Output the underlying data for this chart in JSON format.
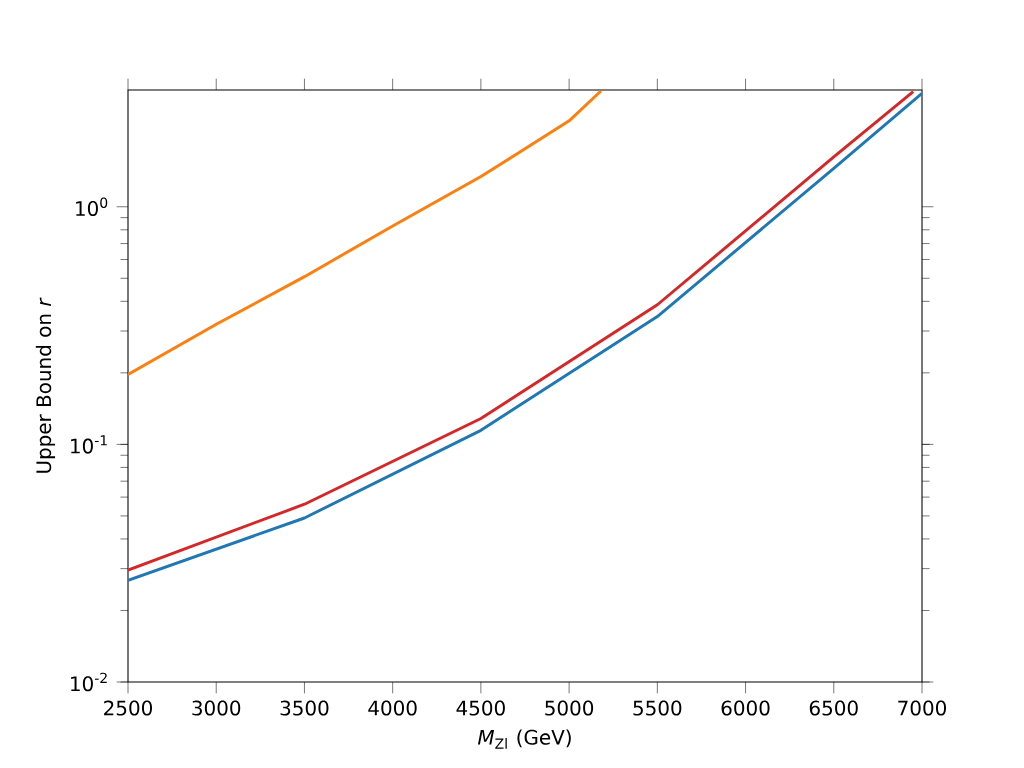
{
  "chart_data": {
    "type": "line",
    "xlabel": "*M*$_{Zl}$ (GeV)",
    "ylabel": "Upper Bound on *r*",
    "log": "y",
    "x": [
      2500,
      3500,
      4500,
      5500,
      6500,
      7000
    ],
    "xlim": [
      2500,
      7000
    ],
    "ylim": [
      0.01,
      3.1
    ],
    "xticks": [
      2500,
      3000,
      3500,
      4000,
      4500,
      5000,
      5500,
      6000,
      6500,
      7000
    ],
    "yticks": [
      {
        "value": 0.01,
        "label": "10$^{-2}$"
      },
      {
        "value": 0.1,
        "label": "10$^{-1}$"
      },
      {
        "value": 1,
        "label": "10$^{0}$"
      }
    ],
    "series": [
      {
        "color": "#1f77b4",
        "values": [
          0.0268,
          0.049,
          0.1146,
          0.345,
          1.45,
          3.0
        ]
      },
      {
        "color": "#ff7f0e",
        "x": [
          2500,
          3000,
          3500,
          4000,
          4500,
          5000,
          5180
        ],
        "values": [
          0.197,
          0.32,
          0.508,
          0.83,
          1.34,
          2.3,
          3.07
        ]
      },
      {
        "color": "#d62728",
        "x": [
          2500,
          3500,
          4500,
          5500,
          6500,
          6950
        ],
        "values": [
          0.0296,
          0.056,
          0.1285,
          0.387,
          1.62,
          3.05
        ]
      }
    ]
  }
}
